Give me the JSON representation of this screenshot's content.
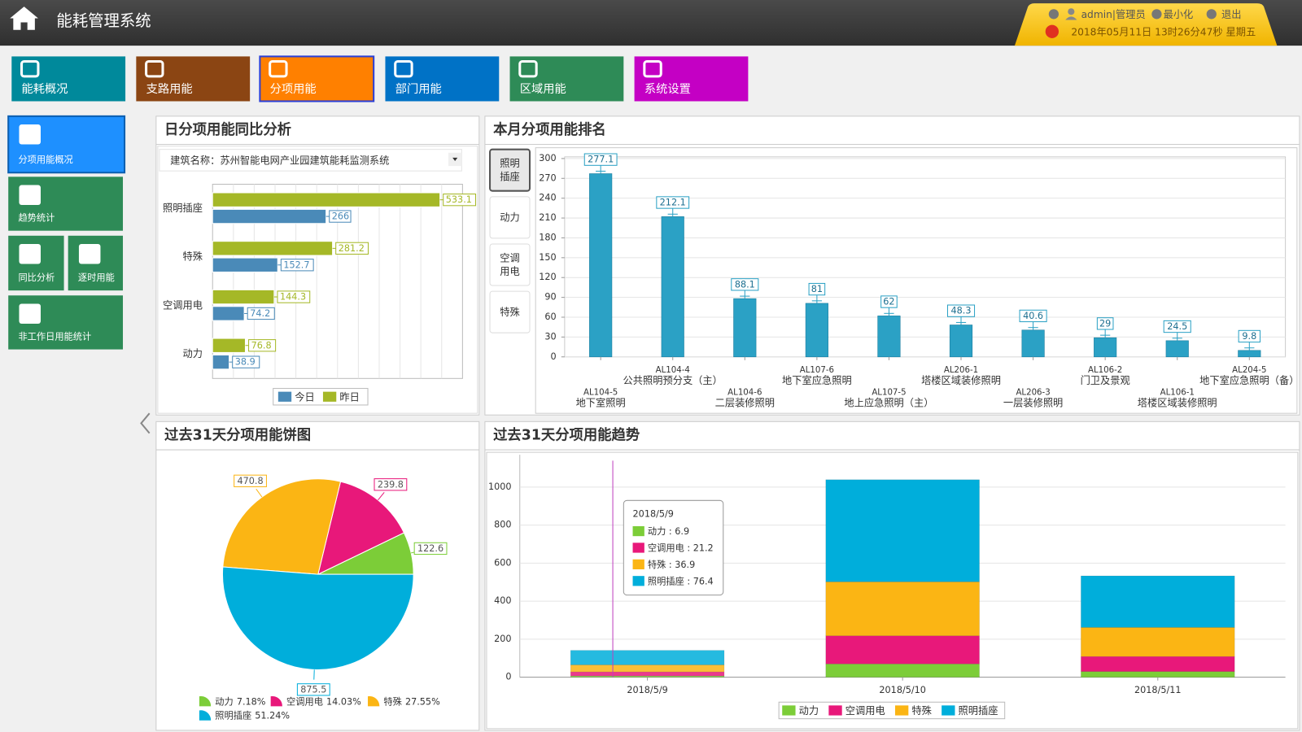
{
  "header": {
    "title": "能耗管理系统",
    "user": "admin|管理员",
    "minimize": "最小化",
    "exit": "退出",
    "datetime": "2018年05月11日 13时26分47秒 星期五"
  },
  "nav": [
    {
      "label": "能耗概况",
      "color": "#00899b"
    },
    {
      "label": "支路用能",
      "color": "#8b4513"
    },
    {
      "label": "分项用能",
      "color": "#ff8000"
    },
    {
      "label": "部门用能",
      "color": "#0072c6"
    },
    {
      "label": "区域用能",
      "color": "#2e8b57"
    },
    {
      "label": "系统设置",
      "color": "#c400c4"
    }
  ],
  "nav_active": 2,
  "sidebar": [
    {
      "label": "分项用能概况",
      "color": "#1e90ff"
    },
    {
      "label": "趋势统计",
      "color": "#2e8b57"
    },
    {
      "label": "同比分析",
      "color": "#2e8b57"
    },
    {
      "label": "逐时用能",
      "color": "#2e8b57"
    },
    {
      "label": "非工作日用能统计",
      "color": "#2e8b57"
    }
  ],
  "sidebar_active": 0,
  "chart_data": [
    {
      "type": "hbar",
      "title": "日分项用能同比分析",
      "filter_label": "建筑名称：",
      "filter_value": "苏州智能电网产业园建筑能耗监测系统",
      "categories": [
        "照明插座",
        "特殊",
        "空调用电",
        "动力"
      ],
      "series": [
        {
          "name": "今日",
          "color": "#4a8ab8",
          "values": [
            266,
            152.7,
            74.2,
            38.9
          ]
        },
        {
          "name": "昨日",
          "color": "#a5b827",
          "values": [
            533.1,
            281.2,
            144.3,
            76.8
          ]
        }
      ],
      "xlim": [
        0,
        586
      ],
      "grid": true
    },
    {
      "type": "bar",
      "title": "本月分项用能排名",
      "buttons": [
        "照明插座",
        "动力",
        "空调用电",
        "特殊"
      ],
      "active_button": 0,
      "categories": [
        [
          "AL104-5",
          "地下室照明"
        ],
        [
          "AL104-4",
          "公共照明预分支（主）"
        ],
        [
          "AL104-6",
          "二层装修照明"
        ],
        [
          "AL107-6",
          "地下室应急照明"
        ],
        [
          "AL107-5",
          "地上应急照明（主）"
        ],
        [
          "AL206-1",
          "塔楼区域装修照明"
        ],
        [
          "AL206-3",
          "一层装修照明"
        ],
        [
          "AL106-2",
          "门卫及景观"
        ],
        [
          "AL106-1",
          "塔楼区域装修照明"
        ],
        [
          "AL204-5",
          "地下室应急照明（备）"
        ]
      ],
      "values": [
        277.1,
        212.1,
        88.1,
        81,
        62,
        48.3,
        40.6,
        29,
        24.5,
        9.8
      ],
      "color": "#2ba1c5",
      "ylim": [
        0,
        300
      ],
      "yticks": [
        0,
        30,
        60,
        90,
        120,
        150,
        180,
        210,
        240,
        270,
        300
      ],
      "grid": true
    },
    {
      "type": "pie",
      "title": "过去31天分项用能饼图",
      "categories": [
        "动力",
        "空调用电",
        "特殊",
        "照明插座"
      ],
      "values": [
        122.6,
        239.8,
        470.8,
        875.5
      ],
      "colors": [
        "#7ccd38",
        "#e8187a",
        "#fbb514",
        "#00aedb"
      ],
      "percent_labels": [
        "7.18%",
        "14.03%",
        "27.55%",
        "51.24%"
      ]
    },
    {
      "type": "stacked_bar",
      "title": "过去31天分项用能趋势",
      "categories": [
        "2018/5/9",
        "2018/5/10",
        "2018/5/11"
      ],
      "series": [
        {
          "name": "动力",
          "color": "#7ccd38",
          "values": [
            6.9,
            70,
            30
          ]
        },
        {
          "name": "空调用电",
          "color": "#e8187a",
          "values": [
            21.2,
            148,
            79
          ]
        },
        {
          "name": "特殊",
          "color": "#fbb514",
          "values": [
            36.9,
            284,
            153
          ]
        },
        {
          "name": "照明插座",
          "color": "#00aedb",
          "values": [
            76.4,
            537,
            271
          ]
        }
      ],
      "ylim": [
        0,
        1170
      ],
      "yticks": [
        0,
        200,
        400,
        600,
        800,
        1000
      ],
      "grid": true,
      "tooltip": {
        "title": "2018/5/9",
        "lines": [
          "动力 : 6.9",
          "空调用电 : 21.2",
          "特殊 : 36.9",
          "照明插座 : 76.4"
        ]
      }
    }
  ]
}
